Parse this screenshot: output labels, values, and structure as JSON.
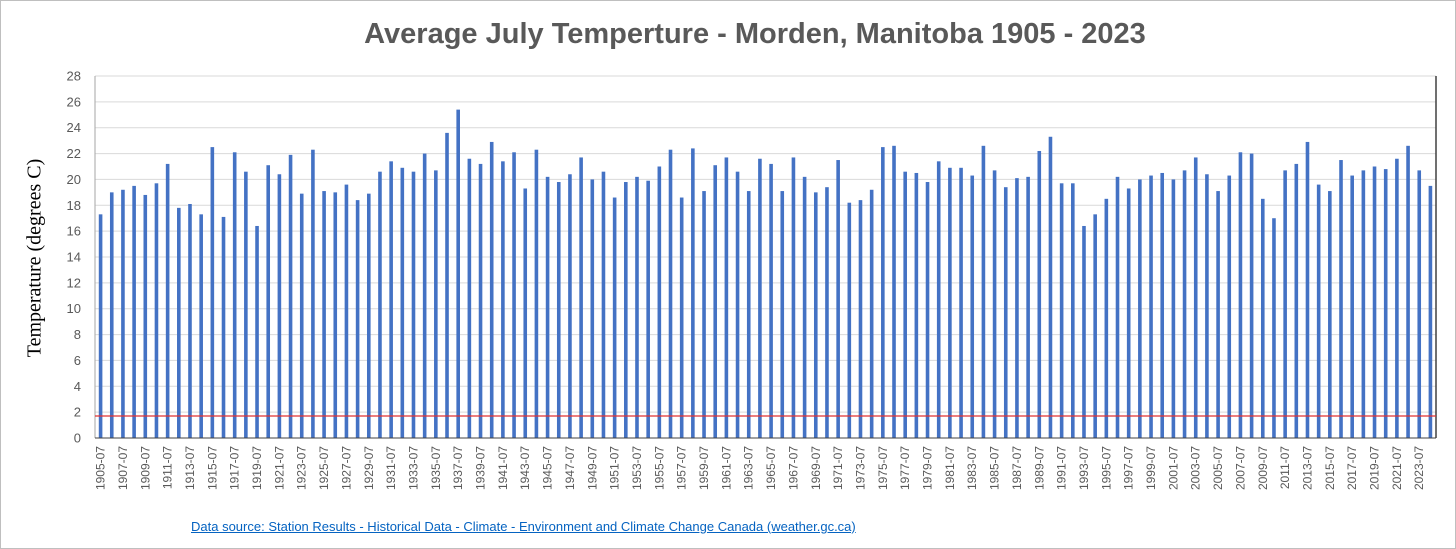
{
  "chart_data": {
    "type": "bar",
    "title": "Average July Temperture - Morden, Manitoba 1905 - 2023",
    "ylabel": "Temperature (degrees C)",
    "xlabel": "",
    "ylim": [
      0,
      28
    ],
    "yticks": [
      0,
      2,
      4,
      6,
      8,
      10,
      12,
      14,
      16,
      18,
      20,
      22,
      24,
      26,
      28
    ],
    "grid": true,
    "legend": "none",
    "bar_color": "#4472c4",
    "reference_line": {
      "value": 1.7,
      "color": "#e03030"
    },
    "tick_labels": [
      "1905-07",
      "1907-07",
      "1909-07",
      "1911-07",
      "1913-07",
      "1915-07",
      "1917-07",
      "1919-07",
      "1921-07",
      "1923-07",
      "1925-07",
      "1927-07",
      "1929-07",
      "1931-07",
      "1933-07",
      "1935-07",
      "1937-07",
      "1939-07",
      "1941-07",
      "1943-07",
      "1945-07",
      "1947-07",
      "1949-07",
      "1951-07",
      "1953-07",
      "1955-07",
      "1957-07",
      "1959-07",
      "1961-07",
      "1963-07",
      "1965-07",
      "1967-07",
      "1969-07",
      "1971-07",
      "1973-07",
      "1975-07",
      "1977-07",
      "1979-07",
      "1981-07",
      "1983-07",
      "1985-07",
      "1987-07",
      "1989-07",
      "1991-07",
      "1993-07",
      "1995-07",
      "1997-07",
      "1999-07",
      "2001-07",
      "2003-07",
      "2005-07",
      "2007-07",
      "2009-07",
      "2011-07",
      "2013-07",
      "2015-07",
      "2017-07",
      "2019-07",
      "2021-07",
      "2023-07"
    ],
    "series": [
      {
        "values": [
          17.3,
          19.0,
          19.2,
          19.5,
          18.8,
          19.7,
          21.2,
          17.8,
          18.1,
          17.3,
          22.5,
          17.1,
          22.1,
          20.6,
          16.4,
          21.1,
          20.4,
          21.9,
          18.9,
          22.3,
          19.1,
          19.0,
          19.6,
          18.4,
          18.9,
          20.6,
          21.4,
          20.9,
          20.6,
          22.0,
          20.7,
          23.6,
          25.4,
          21.6,
          21.2,
          22.9,
          21.4,
          22.1,
          19.3,
          22.3,
          20.2,
          19.8,
          20.4,
          21.7,
          20.0,
          20.6,
          18.6,
          19.8,
          20.2,
          19.9,
          21.0,
          22.3,
          18.6,
          22.4,
          19.1,
          21.1,
          21.7,
          20.6,
          19.1,
          21.6,
          21.2,
          19.1,
          21.7,
          20.2,
          19.0,
          19.4,
          21.5,
          18.2,
          18.4,
          19.2,
          22.5,
          22.6,
          20.6,
          20.5,
          19.8,
          21.4,
          20.9,
          20.9,
          20.3,
          22.6,
          20.7,
          19.4,
          20.1,
          20.2,
          22.2,
          23.3,
          19.7,
          19.7,
          16.4,
          17.3,
          18.5,
          20.2,
          19.3,
          20.0,
          20.3,
          20.5,
          20.0,
          20.7,
          21.7,
          20.4,
          19.1,
          20.3,
          22.1,
          22.0,
          18.5,
          17.0,
          20.7,
          21.2,
          22.9,
          19.6,
          19.1,
          21.5,
          20.3,
          20.7,
          21.0,
          20.8,
          21.6,
          22.6,
          20.7,
          19.5
        ]
      }
    ]
  },
  "source_link": "Data source: Station Results - Historical Data - Climate - Environment and Climate Change Canada (weather.gc.ca)"
}
